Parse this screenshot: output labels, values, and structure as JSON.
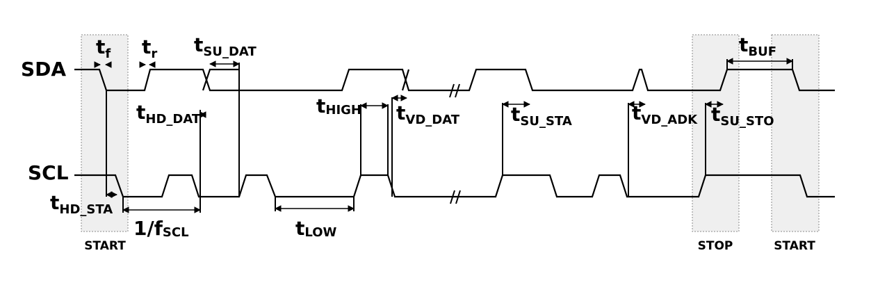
{
  "signals": {
    "sda": "SDA",
    "scl": "SCL"
  },
  "regions": {
    "start": "START",
    "stop": "STOP",
    "start_repeat": "START"
  },
  "timings": {
    "tf": {
      "main": "t",
      "sub": "f"
    },
    "tr": {
      "main": "t",
      "sub": "r"
    },
    "tsu_dat": {
      "main": "t",
      "sub": "SU_DAT"
    },
    "thd_dat": {
      "main": "t",
      "sub": "HD_DAT"
    },
    "thigh": {
      "main": "t",
      "sub": "HIGH"
    },
    "tvd_dat": {
      "main": "t",
      "sub": "VD_DAT"
    },
    "tsu_sta": {
      "main": "t",
      "sub": "SU_STA"
    },
    "tvd_adk": {
      "main": "t",
      "sub": "VD_ADK"
    },
    "tsu_sto": {
      "main": "t",
      "sub": "SU_STO"
    },
    "tbuf": {
      "main": "t",
      "sub": "BUF"
    },
    "thd_sta": {
      "main": "t",
      "sub": "HD_STA"
    },
    "fscl": {
      "main": "1/f",
      "sub": "SCL"
    },
    "tlow": {
      "main": "t",
      "sub": "LOW"
    }
  }
}
